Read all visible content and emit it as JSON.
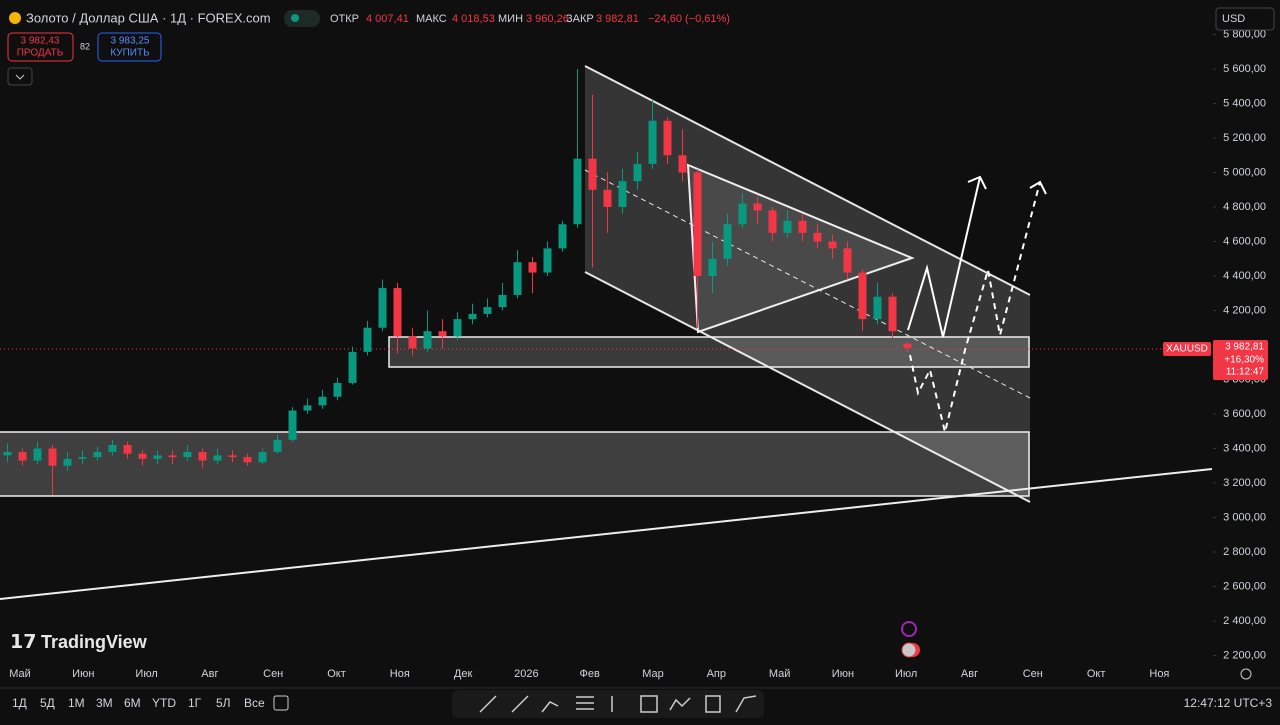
{
  "header": {
    "symbol": "Золото / Доллар США · 1Д · FOREX.com",
    "open_label": "ОТКР",
    "open": "4 007,41",
    "high_label": "МАКС",
    "high": "4 018,53",
    "low_label": "МИН",
    "low": "3 960,26",
    "close_label": "ЗАКР",
    "close": "3 982,81",
    "change": "−24,60 (−0,61%)",
    "sell_price": "3 982,43",
    "sell_label": "ПРОДАТЬ",
    "spread": "82",
    "buy_price": "3 983,25",
    "buy_label": "КУПИТЬ",
    "currency": "USD"
  },
  "toolbar": {
    "ranges": [
      "1Д",
      "5Д",
      "1М",
      "3М",
      "6М",
      "YTD",
      "1Г",
      "5Л",
      "Все"
    ],
    "clock": "12:47:12 UTC+3",
    "brand": "TradingView"
  },
  "chart_data": {
    "type": "candlestick",
    "up_color": "#089981",
    "down_color": "#f23645",
    "open": [
      3360,
      3380,
      3330,
      3400,
      3300,
      3340,
      3350,
      3380,
      3420,
      3370,
      3340,
      3360,
      3350,
      3380,
      3330,
      3360,
      3350,
      3320,
      3380,
      3450,
      3620,
      3650,
      3700,
      3780,
      3960,
      4100,
      4330,
      4050,
      3980,
      4080,
      4050,
      4150,
      4180,
      4220,
      4290,
      4480,
      4420,
      4560,
      4700,
      5080,
      4900,
      4800,
      4950,
      5050,
      5300,
      5100,
      5000,
      4400,
      4500,
      4700,
      4820,
      4780,
      4650,
      4720,
      4650,
      4600,
      4560,
      4420,
      4150,
      4280,
      4007.41
    ],
    "high": [
      3430,
      3400,
      3440,
      3420,
      3380,
      3390,
      3410,
      3450,
      3440,
      3390,
      3390,
      3390,
      3420,
      3400,
      3400,
      3390,
      3370,
      3400,
      3480,
      3640,
      3690,
      3740,
      3810,
      3990,
      4140,
      4380,
      4360,
      4100,
      4200,
      4150,
      4190,
      4240,
      4270,
      4360,
      4550,
      4510,
      4600,
      4720,
      5600,
      5450,
      5000,
      5020,
      5120,
      5420,
      5320,
      5250,
      5020,
      4600,
      4760,
      4880,
      4860,
      4800,
      4780,
      4760,
      4700,
      4640,
      4600,
      4440,
      4360,
      4300,
      4018.53
    ],
    "low": [
      3320,
      3300,
      3310,
      3130,
      3270,
      3310,
      3330,
      3360,
      3340,
      3300,
      3310,
      3310,
      3330,
      3290,
      3310,
      3320,
      3300,
      3310,
      3370,
      3440,
      3600,
      3630,
      3680,
      3770,
      3940,
      4080,
      3950,
      3940,
      3960,
      3980,
      4030,
      4120,
      4160,
      4200,
      4270,
      4300,
      4400,
      4540,
      4680,
      4450,
      4650,
      4760,
      4900,
      5020,
      5050,
      4950,
      4100,
      4300,
      4460,
      4680,
      4700,
      4600,
      4620,
      4600,
      4560,
      4500,
      4380,
      4080,
      4120,
      4040,
      3960.26
    ],
    "close": [
      3380,
      3330,
      3400,
      3300,
      3340,
      3350,
      3380,
      3420,
      3370,
      3340,
      3360,
      3350,
      3380,
      3330,
      3360,
      3350,
      3320,
      3380,
      3450,
      3620,
      3650,
      3700,
      3780,
      3960,
      4100,
      4330,
      4050,
      3980,
      4080,
      4050,
      4150,
      4180,
      4220,
      4290,
      4480,
      4420,
      4560,
      4700,
      5080,
      4900,
      4800,
      4950,
      5050,
      5300,
      5100,
      5000,
      4400,
      4500,
      4700,
      4820,
      4780,
      4650,
      4720,
      4650,
      4600,
      4560,
      4420,
      4150,
      4280,
      4080,
      3982.81
    ],
    "ylim": [
      2000,
      6000
    ],
    "yticks": [
      {
        "value": 2200,
        "label": "2 200,00"
      },
      {
        "value": 2400,
        "label": "2 400,00"
      },
      {
        "value": 2600,
        "label": "2 600,00"
      },
      {
        "value": 2800,
        "label": "2 800,00"
      },
      {
        "value": 3000,
        "label": "3 000,00"
      },
      {
        "value": 3200,
        "label": "3 200,00"
      },
      {
        "value": 3400,
        "label": "3 400,00"
      },
      {
        "value": 3600,
        "label": "3 600,00"
      },
      {
        "value": 3800,
        "label": "3 800,00"
      },
      {
        "value": 4200,
        "label": "4 200,00"
      },
      {
        "value": 4400,
        "label": "4 400,00"
      },
      {
        "value": 4600,
        "label": "4 600,00"
      },
      {
        "value": 4800,
        "label": "4 800,00"
      },
      {
        "value": 5000,
        "label": "5 000,00"
      },
      {
        "value": 5200,
        "label": "5 200,00"
      },
      {
        "value": 5400,
        "label": "5 400,00"
      },
      {
        "value": 5600,
        "label": "5 600,00"
      },
      {
        "value": 5800,
        "label": "5 800,00"
      }
    ],
    "time_labels": [
      "Май",
      "Июн",
      "Июл",
      "Авг",
      "Сен",
      "Окт",
      "Ноя",
      "Дек",
      "2026",
      "Фев",
      "Мар",
      "Апр",
      "Май",
      "Июн",
      "Июл",
      "Авг",
      "Сен",
      "Окт",
      "Ноя"
    ],
    "price_tag": {
      "symbol": "XAUUSD",
      "price": "3 982,81",
      "change": "+16,30%",
      "countdown": "11:12:47"
    }
  }
}
